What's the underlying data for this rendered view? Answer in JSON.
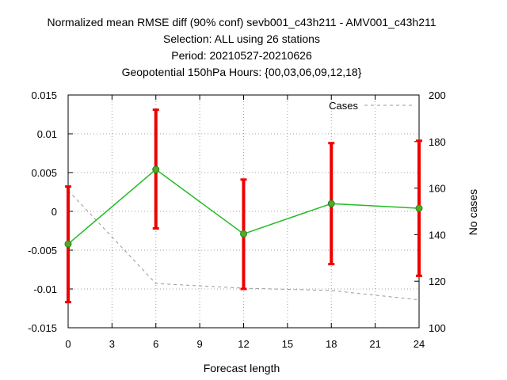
{
  "chart_data": {
    "type": "line",
    "title_lines": [
      "Normalized mean RMSE diff (90% conf) sevb001_c43h211 - AMV001_c43h211",
      "Selection: ALL using    26 stations",
      "Period: 20210527-20210626",
      "Geopotential 150hPa   Hours: {00,03,06,09,12,18}"
    ],
    "xlabel": "Forecast length",
    "ylabel_left": "",
    "ylabel_right": "No cases",
    "xlim": [
      0,
      24
    ],
    "ylim_left": [
      -0.015,
      0.015
    ],
    "ylim_right": [
      100,
      200
    ],
    "x_ticks": [
      0,
      3,
      6,
      9,
      12,
      15,
      18,
      21,
      24
    ],
    "y_ticks_left": [
      -0.015,
      -0.01,
      -0.005,
      0,
      0.005,
      0.01,
      0.015
    ],
    "y_tick_labels_left": [
      "-0.015",
      "-0.01",
      "-0.005",
      "0",
      "0.005",
      "0.01",
      "0.015"
    ],
    "y_ticks_right": [
      100,
      120,
      140,
      160,
      180,
      200
    ],
    "grid": true,
    "legend_position": "top-right",
    "series": [
      {
        "name": "",
        "axis": "left",
        "style": "solid",
        "color": "#22bb22",
        "x": [
          0,
          6,
          12,
          18,
          24
        ],
        "y": [
          -0.0042,
          0.0054,
          -0.0029,
          0.001,
          0.0004
        ],
        "error_low": [
          -0.0117,
          -0.0022,
          -0.01,
          -0.0068,
          -0.0083
        ],
        "error_high": [
          0.0032,
          0.0131,
          0.0041,
          0.0088,
          0.0091
        ],
        "error_color": "#ee0000"
      },
      {
        "name": "Cases",
        "axis": "right",
        "style": "dashed",
        "color": "#999999",
        "x": [
          0,
          6,
          12,
          18,
          24
        ],
        "y": [
          159,
          119,
          117,
          116,
          112
        ]
      }
    ]
  }
}
